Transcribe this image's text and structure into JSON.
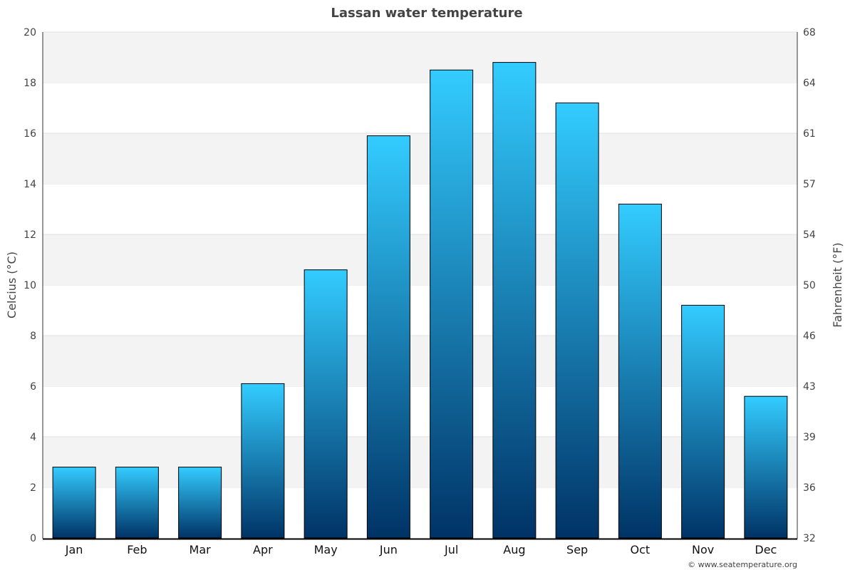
{
  "chart_data": {
    "type": "bar",
    "title": "Lassan water temperature",
    "categories": [
      "Jan",
      "Feb",
      "Mar",
      "Apr",
      "May",
      "Jun",
      "Jul",
      "Aug",
      "Sep",
      "Oct",
      "Nov",
      "Dec"
    ],
    "values": [
      2.8,
      2.8,
      2.8,
      6.1,
      10.6,
      15.9,
      18.5,
      18.8,
      17.2,
      13.2,
      9.2,
      5.6
    ],
    "ylabel": "Celcius (°C)",
    "y2label": "Fahrenheit (°F)",
    "ylim": [
      0,
      20
    ],
    "yticks": [
      0,
      2,
      4,
      6,
      8,
      10,
      12,
      14,
      16,
      18,
      20
    ],
    "y2ticks": [
      "32",
      "36",
      "39",
      "43",
      "46",
      "50",
      "54",
      "57",
      "61",
      "64",
      "68"
    ],
    "grid": true,
    "colors": {
      "bar_top": "#33ccff",
      "bar_bottom": "#003366",
      "band": "#f3f3f3"
    }
  },
  "credit": "© www.seatemperature.org"
}
